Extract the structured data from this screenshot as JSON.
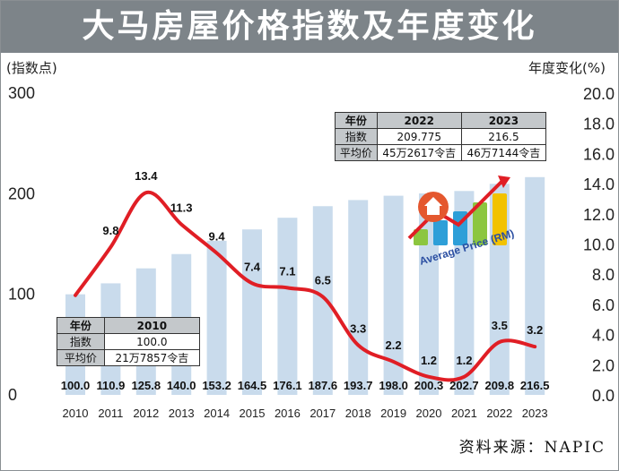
{
  "title": "大马房屋价格指数及年度变化",
  "source": "资料来源：NAPIC",
  "chart_data": {
    "type": "bar",
    "categories": [
      "2010",
      "2011",
      "2012",
      "2013",
      "2014",
      "2015",
      "2016",
      "2017",
      "2018",
      "2019",
      "2020",
      "2021",
      "2022",
      "2023"
    ],
    "left_axis": {
      "unit_label": "(指数点)",
      "ylim": [
        0,
        300
      ],
      "ticks": [
        "0",
        "100",
        "200",
        "300"
      ]
    },
    "right_axis": {
      "unit_label": "年度变化(%)",
      "ylim": [
        0,
        20
      ],
      "ticks": [
        "0.0",
        "2.0",
        "4.0",
        "6.0",
        "8.0",
        "10.0",
        "12.0",
        "14.0",
        "16.0",
        "18.0",
        "20.0"
      ]
    },
    "series": [
      {
        "type": "bar",
        "axis": "left",
        "values": [
          100.0,
          110.9,
          125.8,
          140.0,
          153.2,
          164.5,
          176.1,
          187.6,
          193.7,
          198.0,
          200.3,
          202.7,
          209.8,
          216.5
        ],
        "labels": [
          "100.0",
          "110.9",
          "125.8",
          "140.0",
          "153.2",
          "164.5",
          "176.1",
          "187.6",
          "193.7",
          "198.0",
          "200.3",
          "202.7",
          "209.8",
          "216.5"
        ]
      },
      {
        "type": "line",
        "axis": "right",
        "values": [
          6.6,
          9.8,
          13.4,
          11.3,
          9.4,
          7.4,
          7.1,
          6.5,
          3.3,
          2.2,
          1.2,
          1.2,
          3.5,
          3.2
        ],
        "labels": [
          "",
          "9.8",
          "13.4",
          "11.3",
          "9.4",
          "7.4",
          "7.1",
          "6.5",
          "3.3",
          "2.2",
          "1.2",
          "1.2",
          "3.5",
          "3.2"
        ]
      }
    ],
    "colors": {
      "bars": "#c9dbec",
      "line": "#e01e25",
      "grid": "none"
    }
  },
  "table_2010": {
    "header": [
      "年份",
      "2010"
    ],
    "rows": [
      [
        "指数",
        "100.0"
      ],
      [
        "平均价",
        "21万7857令吉"
      ]
    ]
  },
  "table_2022_2023": {
    "header": [
      "年份",
      "2022",
      "2023"
    ],
    "rows": [
      [
        "指数",
        "209.775",
        "216.5"
      ],
      [
        "平均价",
        "45万2617令吉",
        "46万7144令吉"
      ]
    ]
  },
  "graphic": {
    "caption": "Average Price (RM)",
    "icon": "house-price-chart-icon"
  }
}
